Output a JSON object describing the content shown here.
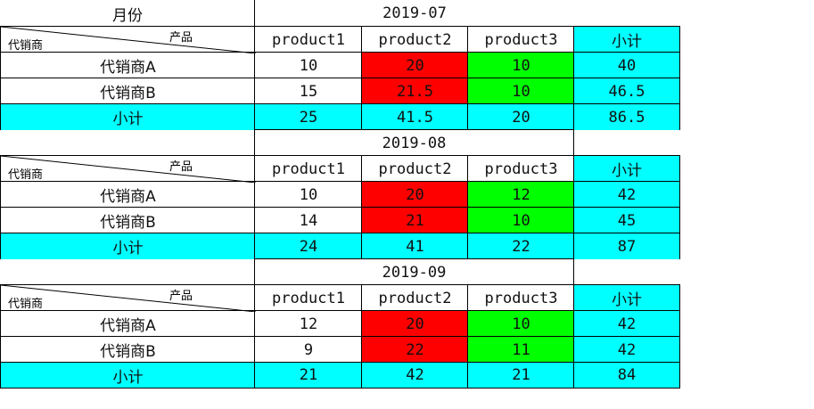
{
  "header": {
    "month_label": "月份"
  },
  "corner": {
    "top_label": "产品",
    "bottom_label": "代销商"
  },
  "columns": {
    "p1": "product1",
    "p2": "product2",
    "p3": "product3",
    "subtotal": "小计"
  },
  "blocks": [
    {
      "month": "2019-07",
      "rows": [
        {
          "label": "代销商A",
          "p1": "10",
          "p2": "20",
          "p3": "10",
          "total": "40"
        },
        {
          "label": "代销商B",
          "p1": "15",
          "p2": "21.5",
          "p3": "10",
          "total": "46.5"
        }
      ],
      "subtotal": {
        "label": "小计",
        "p1": "25",
        "p2": "41.5",
        "p3": "20",
        "total": "86.5"
      }
    },
    {
      "month": "2019-08",
      "rows": [
        {
          "label": "代销商A",
          "p1": "10",
          "p2": "20",
          "p3": "12",
          "total": "42"
        },
        {
          "label": "代销商B",
          "p1": "14",
          "p2": "21",
          "p3": "10",
          "total": "45"
        }
      ],
      "subtotal": {
        "label": "小计",
        "p1": "24",
        "p2": "41",
        "p3": "22",
        "total": "87"
      }
    },
    {
      "month": "2019-09",
      "rows": [
        {
          "label": "代销商A",
          "p1": "12",
          "p2": "20",
          "p3": "10",
          "total": "42"
        },
        {
          "label": "代销商B",
          "p1": "9",
          "p2": "22",
          "p3": "11",
          "total": "42"
        }
      ],
      "subtotal": {
        "label": "小计",
        "p1": "21",
        "p2": "42",
        "p3": "21",
        "total": "84"
      }
    }
  ],
  "colors": {
    "subtotal": "#00ffff",
    "product2": "#ff0000",
    "product3": "#00ff00"
  }
}
